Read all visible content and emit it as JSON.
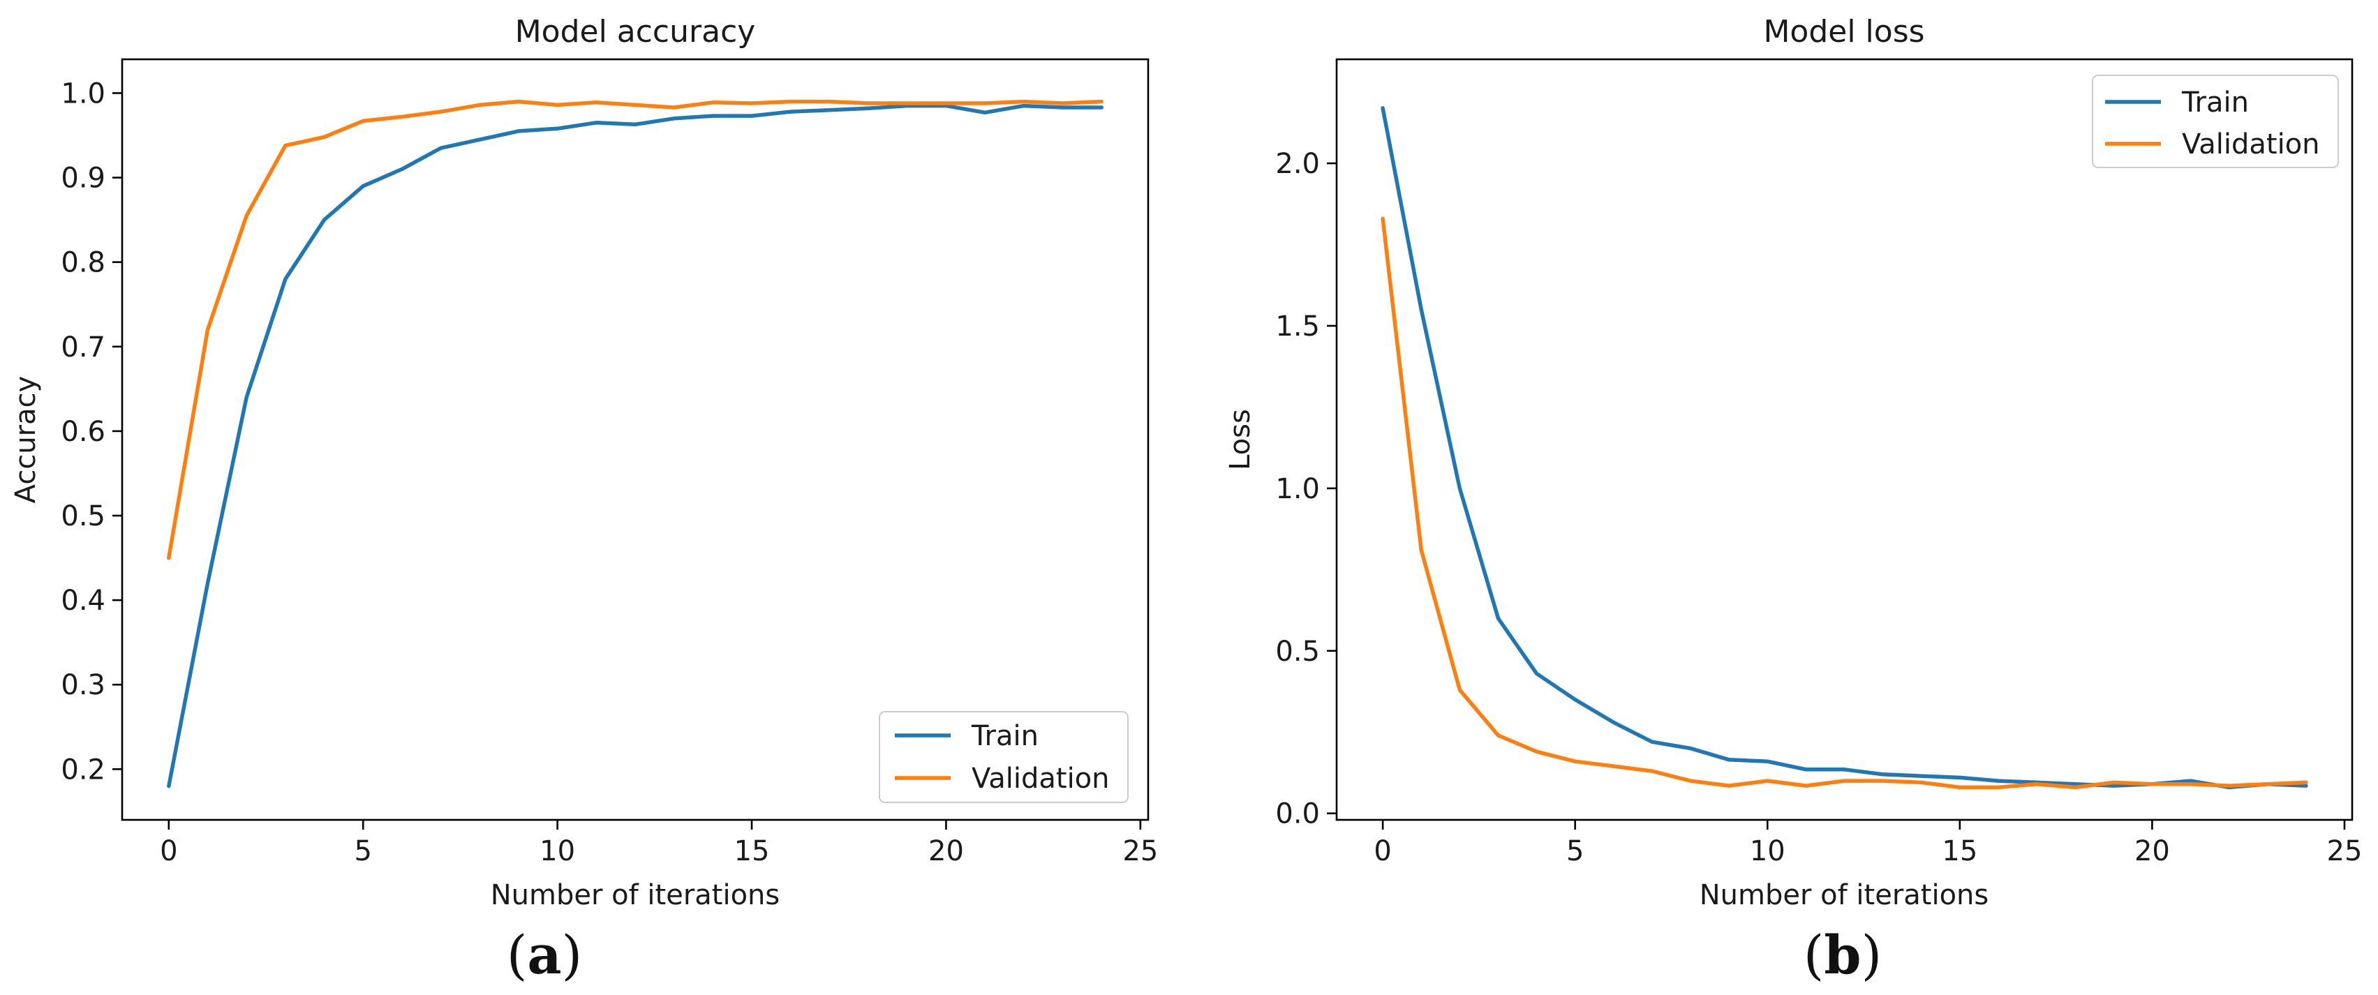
{
  "chart_data": [
    {
      "type": "line",
      "panel_label": "a",
      "title": "Model accuracy",
      "xlabel": "Number of iterations",
      "ylabel": "Accuracy",
      "xlim": [
        -1.2,
        25.2
      ],
      "ylim": [
        0.14,
        1.04
      ],
      "xticks": [
        0,
        5,
        10,
        15,
        20,
        25
      ],
      "yticks": [
        0.2,
        0.3,
        0.4,
        0.5,
        0.6,
        0.7,
        0.8,
        0.9,
        1.0
      ],
      "ytick_labels": [
        "0.2",
        "0.3",
        "0.4",
        "0.5",
        "0.6",
        "0.7",
        "0.8",
        "0.9",
        "1.0"
      ],
      "grid": false,
      "legend_position": "lower-right",
      "x": [
        0,
        1,
        2,
        3,
        4,
        5,
        6,
        7,
        8,
        9,
        10,
        11,
        12,
        13,
        14,
        15,
        16,
        17,
        18,
        19,
        20,
        21,
        22,
        23,
        24
      ],
      "series": [
        {
          "name": "Train",
          "color": "#1f77b4",
          "values": [
            0.18,
            0.42,
            0.64,
            0.78,
            0.85,
            0.89,
            0.91,
            0.935,
            0.945,
            0.955,
            0.958,
            0.965,
            0.963,
            0.97,
            0.973,
            0.973,
            0.978,
            0.98,
            0.982,
            0.985,
            0.985,
            0.977,
            0.985,
            0.983,
            0.983
          ]
        },
        {
          "name": "Validation",
          "color": "#ff7f0e",
          "values": [
            0.45,
            0.72,
            0.855,
            0.938,
            0.948,
            0.967,
            0.972,
            0.978,
            0.986,
            0.99,
            0.986,
            0.989,
            0.986,
            0.983,
            0.989,
            0.988,
            0.99,
            0.99,
            0.988,
            0.988,
            0.988,
            0.988,
            0.99,
            0.988,
            0.99
          ]
        }
      ]
    },
    {
      "type": "line",
      "panel_label": "b",
      "title": "Model loss",
      "xlabel": "Number of iterations",
      "ylabel": "Loss",
      "xlim": [
        -1.2,
        25.2
      ],
      "ylim": [
        -0.02,
        2.32
      ],
      "xticks": [
        0,
        5,
        10,
        15,
        20,
        25
      ],
      "yticks": [
        0.0,
        0.5,
        1.0,
        1.5,
        2.0
      ],
      "ytick_labels": [
        "0.0",
        "0.5",
        "1.0",
        "1.5",
        "2.0"
      ],
      "grid": false,
      "legend_position": "upper-right",
      "x": [
        0,
        1,
        2,
        3,
        4,
        5,
        6,
        7,
        8,
        9,
        10,
        11,
        12,
        13,
        14,
        15,
        16,
        17,
        18,
        19,
        20,
        21,
        22,
        23,
        24
      ],
      "series": [
        {
          "name": "Train",
          "color": "#1f77b4",
          "values": [
            2.17,
            1.55,
            1.0,
            0.6,
            0.43,
            0.35,
            0.28,
            0.22,
            0.2,
            0.165,
            0.16,
            0.135,
            0.135,
            0.12,
            0.115,
            0.11,
            0.1,
            0.095,
            0.09,
            0.085,
            0.09,
            0.1,
            0.08,
            0.09,
            0.085
          ]
        },
        {
          "name": "Validation",
          "color": "#ff7f0e",
          "values": [
            1.83,
            0.81,
            0.38,
            0.24,
            0.19,
            0.16,
            0.145,
            0.13,
            0.1,
            0.085,
            0.1,
            0.085,
            0.1,
            0.1,
            0.095,
            0.08,
            0.08,
            0.09,
            0.08,
            0.095,
            0.09,
            0.09,
            0.085,
            0.09,
            0.095
          ]
        }
      ]
    }
  ]
}
